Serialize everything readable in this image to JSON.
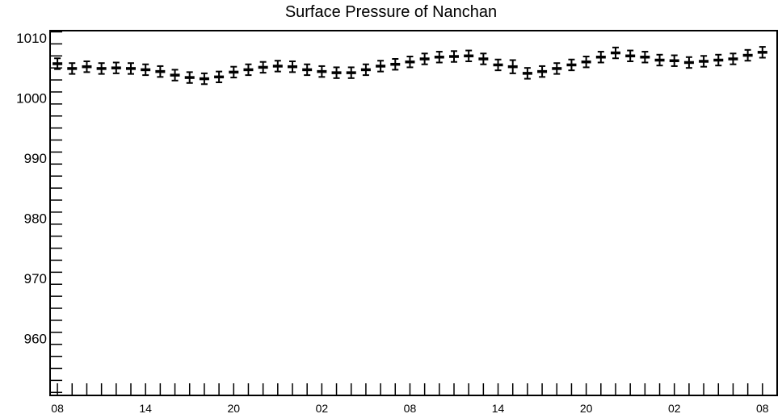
{
  "chart_data": {
    "type": "scatter",
    "title": "Surface Pressure of Nanchan",
    "xlabel": "",
    "ylabel": "",
    "ylim": [
      950.5,
      1011.2
    ],
    "y_ticks": [
      960,
      970,
      980,
      990,
      1000,
      1010
    ],
    "y_tick_labels": [
      "960",
      "970",
      "980",
      "990",
      "1000",
      "1010"
    ],
    "x_tick_labels": [
      "08",
      "14",
      "20",
      "02",
      "08",
      "14",
      "20",
      "02",
      "08"
    ],
    "x_tick_positions": [
      0,
      6,
      12,
      18,
      24,
      30,
      36,
      42,
      48
    ],
    "xlim": [
      -0.5,
      49
    ],
    "grid": false,
    "error_bar": true,
    "series": [
      {
        "x": [
          0,
          1,
          2,
          3,
          4,
          5,
          6,
          7,
          8,
          9,
          10,
          11,
          12,
          13,
          14,
          15,
          16,
          17,
          18,
          19,
          20,
          21,
          22,
          23,
          24,
          25,
          26,
          27,
          28,
          29,
          30,
          31,
          32,
          33,
          34,
          35,
          36,
          37,
          38,
          39,
          40,
          41,
          42,
          43,
          44,
          45,
          46,
          47,
          48
        ],
        "y": [
          1005.7,
          1004.9,
          1005.2,
          1004.9,
          1005.0,
          1004.9,
          1004.7,
          1004.4,
          1003.8,
          1003.4,
          1003.2,
          1003.5,
          1004.3,
          1004.7,
          1005.1,
          1005.3,
          1005.2,
          1004.7,
          1004.4,
          1004.2,
          1004.2,
          1004.7,
          1005.3,
          1005.6,
          1006.0,
          1006.5,
          1006.8,
          1006.9,
          1007.0,
          1006.5,
          1005.5,
          1005.2,
          1004.1,
          1004.4,
          1004.9,
          1005.5,
          1006.0,
          1006.8,
          1007.5,
          1007.0,
          1006.8,
          1006.3,
          1006.2,
          1005.9,
          1006.1,
          1006.3,
          1006.5,
          1007.1,
          1007.6
        ],
        "err": [
          0.9,
          0.9,
          0.9,
          0.9,
          0.9,
          0.9,
          0.9,
          0.9,
          0.9,
          0.9,
          0.9,
          0.9,
          0.9,
          0.9,
          0.9,
          0.9,
          0.9,
          0.9,
          0.9,
          0.9,
          0.9,
          0.9,
          0.9,
          0.9,
          0.9,
          0.9,
          0.9,
          0.9,
          0.9,
          0.9,
          0.9,
          1.1,
          0.9,
          0.9,
          0.9,
          0.9,
          0.9,
          0.9,
          0.9,
          0.9,
          0.9,
          0.9,
          0.9,
          0.9,
          0.9,
          0.9,
          0.9,
          0.9,
          0.9
        ]
      }
    ]
  }
}
